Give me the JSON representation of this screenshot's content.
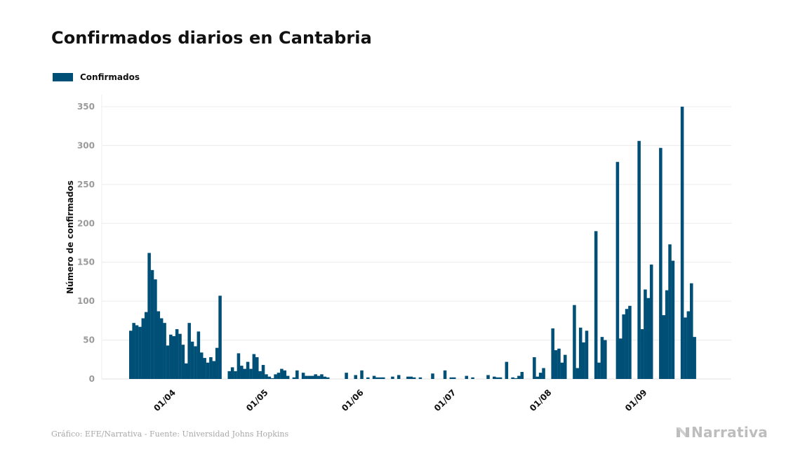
{
  "chart_data": {
    "type": "bar",
    "title": "Confirmados diarios en Cantabria",
    "xlabel": "",
    "ylabel": "Número de confirmados",
    "ylim": [
      0,
      350
    ],
    "yticks": [
      0,
      50,
      100,
      150,
      200,
      250,
      300,
      350
    ],
    "grid": true,
    "legend_position": "top-left",
    "start_date": "17/03",
    "xticks": [
      {
        "label": "01/04",
        "day_index": 15
      },
      {
        "label": "01/05",
        "day_index": 45
      },
      {
        "label": "01/06",
        "day_index": 76
      },
      {
        "label": "01/07",
        "day_index": 106
      },
      {
        "label": "01/08",
        "day_index": 137
      },
      {
        "label": "01/09",
        "day_index": 168
      }
    ],
    "series": [
      {
        "name": "Confirmados",
        "color": "#004f76",
        "values": [
          62,
          72,
          69,
          67,
          78,
          86,
          162,
          140,
          128,
          87,
          78,
          72,
          43,
          57,
          55,
          64,
          58,
          44,
          20,
          72,
          48,
          42,
          61,
          34,
          27,
          21,
          28,
          23,
          40,
          107,
          0,
          0,
          10,
          15,
          10,
          33,
          17,
          13,
          22,
          13,
          32,
          28,
          10,
          18,
          6,
          3,
          1,
          6,
          8,
          13,
          11,
          4,
          0,
          2,
          11,
          0,
          8,
          4,
          4,
          4,
          6,
          4,
          6,
          3,
          2,
          0,
          0,
          0,
          0,
          0,
          8,
          0,
          0,
          5,
          0,
          11,
          0,
          2,
          0,
          4,
          2,
          2,
          2,
          0,
          0,
          3,
          0,
          5,
          0,
          0,
          3,
          3,
          2,
          0,
          2,
          0,
          0,
          0,
          7,
          0,
          0,
          0,
          11,
          0,
          2,
          2,
          0,
          0,
          0,
          4,
          0,
          2,
          0,
          0,
          0,
          0,
          5,
          0,
          3,
          2,
          2,
          0,
          22,
          0,
          2,
          1,
          4,
          9,
          0,
          0,
          0,
          28,
          3,
          8,
          14,
          0,
          0,
          65,
          37,
          39,
          21,
          31,
          0,
          0,
          95,
          14,
          66,
          47,
          62,
          0,
          0,
          190,
          21,
          54,
          50,
          0,
          0,
          0,
          279,
          52,
          83,
          90,
          94,
          0,
          0,
          306,
          64,
          115,
          104,
          147,
          0,
          0,
          297,
          82,
          114,
          173,
          152,
          0,
          0,
          350,
          79,
          87,
          123,
          54
        ]
      }
    ]
  },
  "footer": {
    "source": "Gráfico: EFE/Narrativa - Fuente: Universidad Johns Hopkins",
    "brand": "Narrativa"
  }
}
